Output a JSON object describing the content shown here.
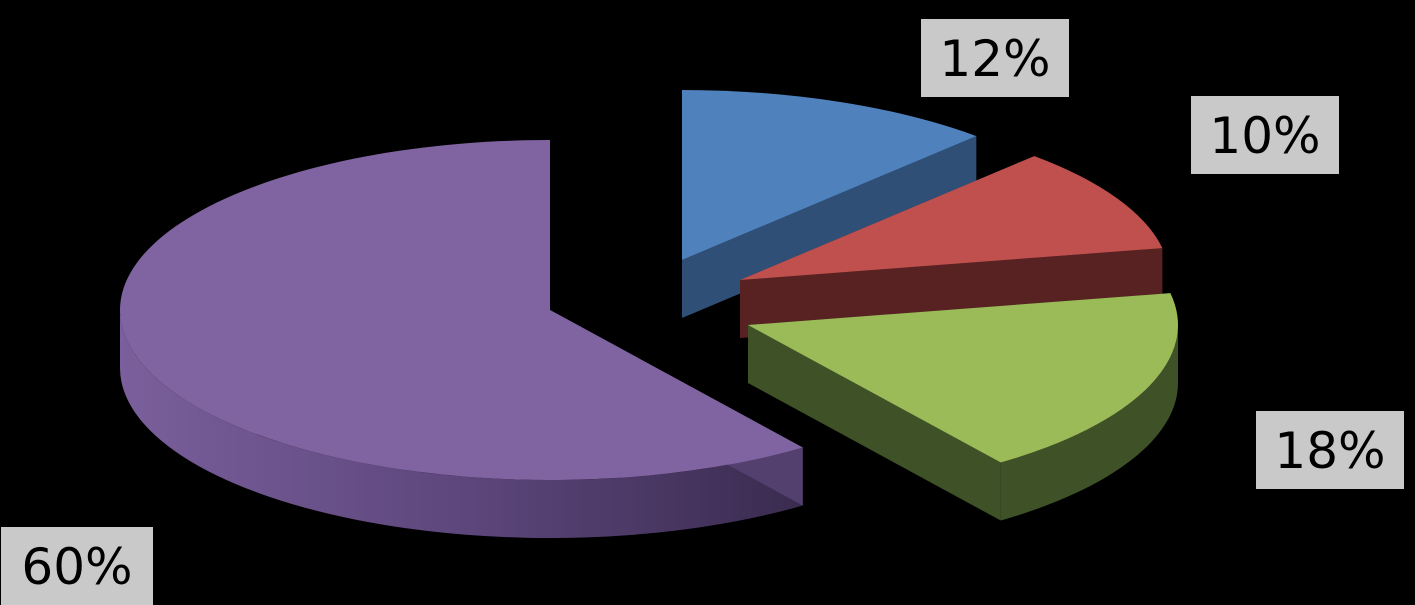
{
  "chart_data": {
    "type": "pie",
    "style": "3d-exploded",
    "title": "",
    "legend": "none",
    "slices": [
      {
        "value": 12,
        "label": "12%",
        "color": "#4f81bd",
        "side_color": "#2f4f77"
      },
      {
        "value": 10,
        "label": "10%",
        "color": "#c0504d",
        "side_color": "#582222"
      },
      {
        "value": 18,
        "label": "18%",
        "color": "#9bbb59",
        "side_color": "#3f5227"
      },
      {
        "value": 60,
        "label": "60%",
        "color": "#8064a2",
        "side_color": "#54406e"
      }
    ]
  }
}
